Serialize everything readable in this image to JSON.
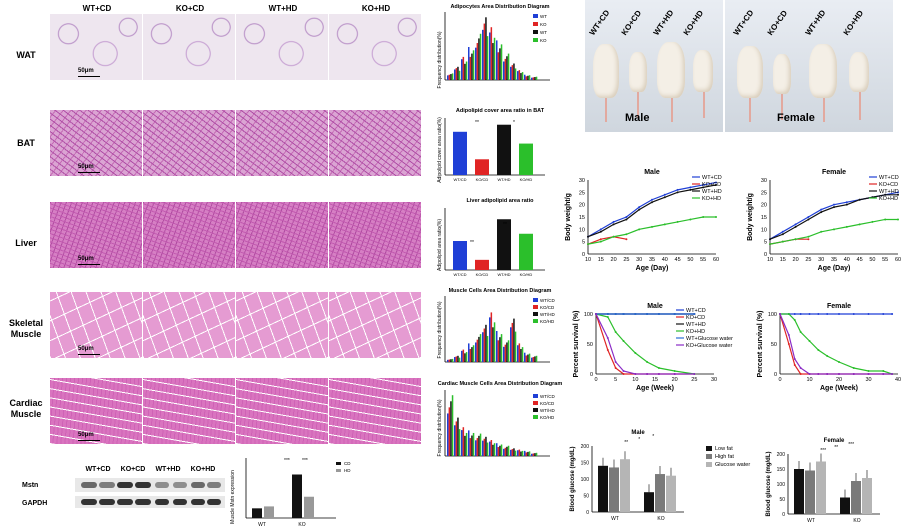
{
  "histology": {
    "columns": [
      "WT+CD",
      "KO+CD",
      "WT+HD",
      "KO+HD"
    ],
    "rows": [
      {
        "key": "wat",
        "label": "WAT"
      },
      {
        "key": "bat",
        "label": "BAT"
      },
      {
        "key": "liver",
        "label": "Liver"
      },
      {
        "key": "sk",
        "label": "Skeletal Muscle"
      },
      {
        "key": "car",
        "label": "Cardiac Muscle"
      }
    ],
    "scale_bar": "50μm"
  },
  "side_charts": {
    "adipocyte": {
      "title": "Adipocytes Area Distribution Diagram",
      "ylabel": "Frequency distribution(%)",
      "legend": [
        "WT",
        "KO",
        "WT",
        "KO"
      ],
      "colors": [
        "#1f3fd6",
        "#e02424",
        "#111111",
        "#2bbf2b"
      ]
    },
    "bat": {
      "title": "Adipolipid cover area ratio in BAT",
      "ylabel": "Adipolipid cover area ratio(%)",
      "categories": [
        "WT/CD",
        "KO/CD",
        "WT/HD",
        "KO/HD"
      ],
      "values": [
        0.55,
        0.2,
        0.64,
        0.4
      ],
      "sig": [
        "**",
        "*"
      ]
    },
    "liver": {
      "title": "Liver adipolipid area ratio",
      "ylabel": "Adipolipid area ratio(%)",
      "categories": [
        "WT/CD",
        "KO/CD",
        "WT/HD",
        "KO/HD"
      ],
      "values": [
        0.2,
        0.07,
        0.35,
        0.25
      ],
      "sig": [
        "**",
        "**"
      ]
    },
    "muscle": {
      "title": "Muscle Cells Area Distribution Diagram",
      "ylabel": "Frequency distribution(%)",
      "legend": [
        "WT/CD",
        "KO/CD",
        "WT/HD",
        "KO/HD"
      ]
    },
    "cardiac": {
      "title": "Cardiac Muscle Cells Area Distribution Diagram",
      "ylabel": "Frequency distribution(%)",
      "legend": [
        "WT/CD",
        "KO/CD",
        "WT/HD",
        "KO/HD"
      ]
    }
  },
  "western": {
    "columns": [
      "WT+CD",
      "KO+CD",
      "WT+HD",
      "KO+HD"
    ],
    "bands": [
      "Mstn",
      "GAPDH"
    ],
    "chart": {
      "ylabel": "Muscle Mstn expression",
      "legend": [
        "CD",
        "HD"
      ],
      "categories": [
        "WT",
        "KO"
      ],
      "values_cd": [
        1.0,
        4.5
      ],
      "values_hd": [
        1.2,
        2.2
      ],
      "sig": [
        "***",
        "***"
      ]
    }
  },
  "photos": {
    "male": {
      "label": "Male",
      "groups": [
        "WT+CD",
        "KO+CD",
        "WT+HD",
        "KO+HD"
      ]
    },
    "female": {
      "label": "Female",
      "groups": [
        "WT+CD",
        "KO+CD",
        "WT+HD",
        "KO+HD"
      ]
    }
  },
  "chart_data": [
    {
      "type": "line",
      "title": "Male",
      "xlabel": "Age (Day)",
      "ylabel": "Body weight/g",
      "x": [
        10,
        15,
        20,
        25,
        30,
        35,
        40,
        45,
        50,
        55,
        60
      ],
      "xlim": [
        10,
        60
      ],
      "ylim": [
        0,
        30
      ],
      "series": [
        {
          "name": "WT+CD",
          "color": "#1f3fd6",
          "values": [
            7,
            10,
            13,
            15,
            19,
            22,
            24,
            26,
            27,
            28,
            29
          ]
        },
        {
          "name": "KO+CD",
          "color": "#e02424",
          "values": [
            4,
            6,
            7,
            6,
            null,
            null,
            null,
            null,
            null,
            null,
            null
          ]
        },
        {
          "name": "WT+HD",
          "color": "#111111",
          "values": [
            7,
            9,
            12,
            14,
            18,
            21,
            23,
            25,
            26,
            27,
            28
          ]
        },
        {
          "name": "KO+HD",
          "color": "#2bbf2b",
          "values": [
            4,
            5,
            7,
            8,
            10,
            11,
            12,
            13,
            14,
            15,
            15
          ]
        }
      ]
    },
    {
      "type": "line",
      "title": "Female",
      "xlabel": "Age (Day)",
      "ylabel": "Body weight/g",
      "x": [
        10,
        15,
        20,
        25,
        30,
        35,
        40,
        45,
        50,
        55,
        60
      ],
      "xlim": [
        10,
        60
      ],
      "ylim": [
        0,
        30
      ],
      "series": [
        {
          "name": "WT+CD",
          "color": "#1f3fd6",
          "values": [
            6,
            9,
            12,
            15,
            18,
            20,
            21,
            22,
            23,
            24,
            25
          ]
        },
        {
          "name": "KO+CD",
          "color": "#e02424",
          "values": [
            4,
            5,
            6,
            6,
            null,
            null,
            null,
            null,
            null,
            null,
            null
          ]
        },
        {
          "name": "WT+HD",
          "color": "#111111",
          "values": [
            6,
            8,
            11,
            14,
            17,
            19,
            20,
            22,
            23,
            24,
            24
          ]
        },
        {
          "name": "KO+HD",
          "color": "#2bbf2b",
          "values": [
            4,
            5,
            6,
            7,
            9,
            10,
            11,
            12,
            13,
            14,
            14
          ]
        }
      ]
    },
    {
      "type": "line",
      "title": "Male",
      "xlabel": "Age (Week)",
      "ylabel": "Percent survival (%)",
      "x": [
        0,
        3,
        5,
        7,
        10,
        13,
        16,
        20,
        25
      ],
      "xlim": [
        0,
        30
      ],
      "ylim": [
        0,
        100
      ],
      "series": [
        {
          "name": "WT+CD",
          "color": "#1f3fd6",
          "values": [
            100,
            100,
            100,
            100,
            100,
            100,
            100,
            100,
            100
          ]
        },
        {
          "name": "KO+CD",
          "color": "#e02424",
          "values": [
            100,
            40,
            10,
            0,
            0,
            0,
            0,
            0,
            0
          ]
        },
        {
          "name": "WT+HD",
          "color": "#111111",
          "values": [
            100,
            100,
            100,
            100,
            100,
            100,
            100,
            100,
            100
          ]
        },
        {
          "name": "KO+HD",
          "color": "#2bbf2b",
          "values": [
            100,
            95,
            70,
            55,
            35,
            20,
            10,
            5,
            0
          ]
        },
        {
          "name": "WT+Glucose water",
          "color": "#2b6fd6",
          "values": [
            100,
            100,
            100,
            100,
            100,
            100,
            100,
            100,
            100
          ]
        },
        {
          "name": "KO+Glucose water",
          "color": "#8a2bc6",
          "values": [
            100,
            60,
            20,
            5,
            0,
            0,
            0,
            0,
            0
          ]
        }
      ],
      "legend": [
        "WT+CD",
        "KO+CD",
        "WT+HD",
        "KO+HD",
        "WT+Glucose water",
        "KO+Glucose water"
      ]
    },
    {
      "type": "line",
      "title": "Female",
      "xlabel": "Age (Week)",
      "ylabel": "Percent survival (%)",
      "x": [
        0,
        3,
        5,
        7,
        10,
        13,
        16,
        20,
        25,
        30,
        35,
        38
      ],
      "xlim": [
        0,
        40
      ],
      "ylim": [
        0,
        100
      ],
      "series": [
        {
          "name": "WT+CD",
          "color": "#1f3fd6",
          "values": [
            100,
            100,
            100,
            100,
            100,
            100,
            100,
            100,
            100,
            100,
            100,
            100
          ]
        },
        {
          "name": "KO+CD",
          "color": "#e02424",
          "values": [
            100,
            50,
            15,
            0,
            0,
            0,
            0,
            0,
            0,
            0,
            0,
            0
          ]
        },
        {
          "name": "KO+HD",
          "color": "#2bbf2b",
          "values": [
            100,
            100,
            90,
            70,
            55,
            40,
            30,
            20,
            10,
            5,
            5,
            0
          ]
        },
        {
          "name": "KO+Glucose water",
          "color": "#8a2bc6",
          "values": [
            100,
            65,
            25,
            10,
            0,
            0,
            0,
            0,
            0,
            0,
            0,
            0
          ]
        }
      ]
    },
    {
      "type": "bar",
      "title": "Male",
      "ylabel": "Blood glucose (mg/dL)",
      "categories": [
        "WT",
        "KO"
      ],
      "ylim": [
        0,
        200
      ],
      "series": [
        {
          "name": "Low fat",
          "color": "#111111",
          "values": [
            140,
            60
          ]
        },
        {
          "name": "High fat",
          "color": "#7a7a7a",
          "values": [
            135,
            115
          ]
        },
        {
          "name": "Glucose water",
          "color": "#b5b5b5",
          "values": [
            160,
            110
          ]
        }
      ],
      "sig": [
        "**",
        "*",
        "*"
      ]
    },
    {
      "type": "bar",
      "title": "Female",
      "ylabel": "Blood glucose (mg/dL)",
      "categories": [
        "WT",
        "KO"
      ],
      "ylim": [
        0,
        200
      ],
      "series": [
        {
          "name": "Low fat",
          "color": "#111111",
          "values": [
            150,
            55
          ]
        },
        {
          "name": "High fat",
          "color": "#7a7a7a",
          "values": [
            145,
            110
          ]
        },
        {
          "name": "Glucose water",
          "color": "#b5b5b5",
          "values": [
            175,
            120
          ]
        }
      ],
      "sig": [
        "***",
        "**",
        "***"
      ]
    }
  ]
}
